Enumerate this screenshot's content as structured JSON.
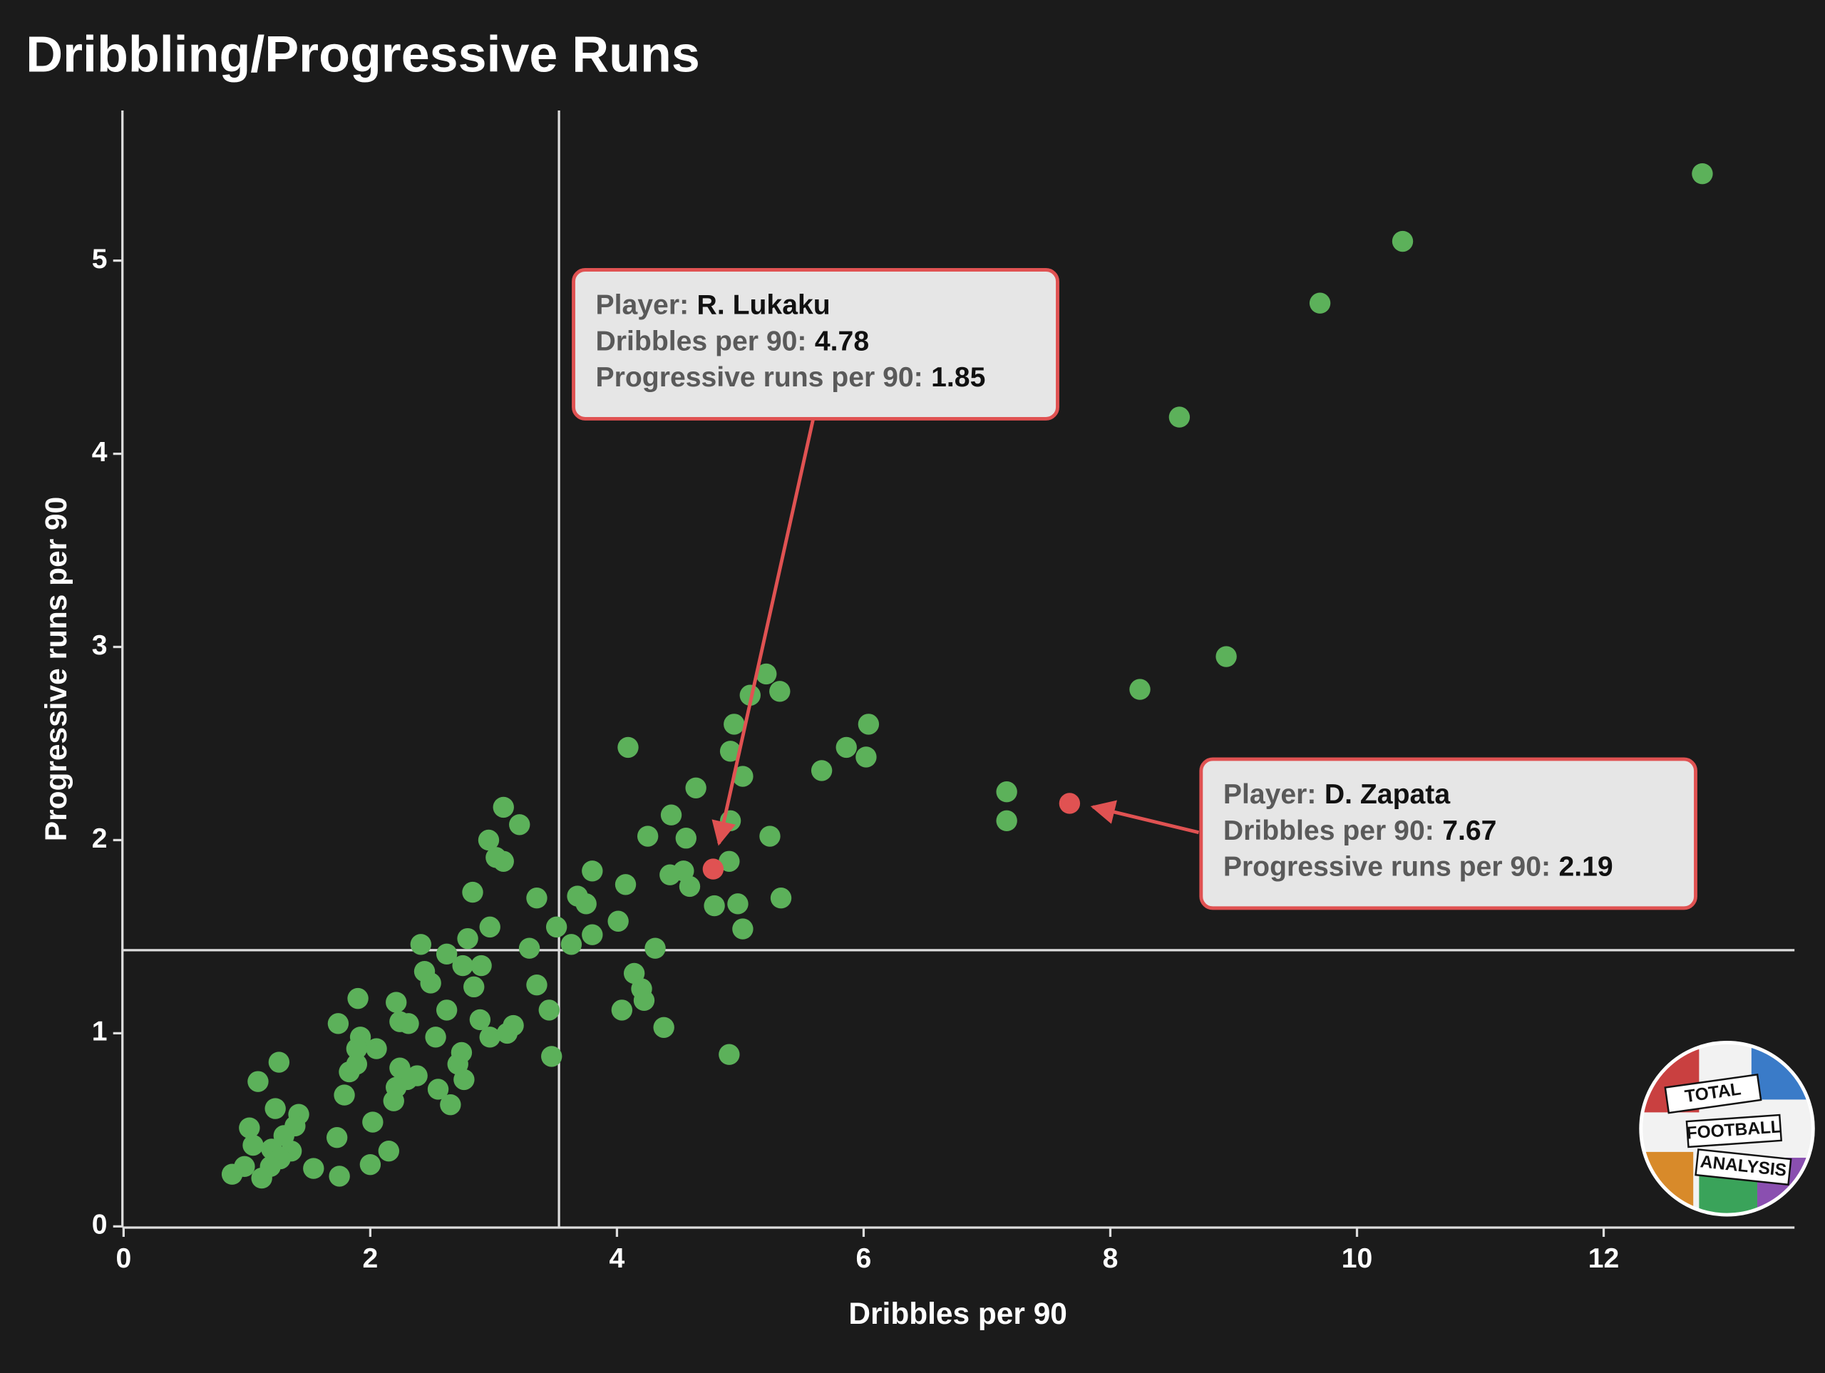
{
  "chart_data": {
    "type": "scatter",
    "title": "Dribbling/Progressive Runs",
    "x_label": "Dribbles per 90",
    "y_label": "Progressive runs per 90",
    "xlim": [
      0,
      13.55
    ],
    "ylim": [
      0,
      5.78
    ],
    "xticks": [
      0,
      2,
      4,
      6,
      8,
      10,
      12
    ],
    "yticks": [
      0,
      1,
      2,
      3,
      4,
      5
    ],
    "reference_lines": {
      "x": 3.53,
      "y": 1.43
    },
    "color": "#5cb15a",
    "highlight_color": "#e05252",
    "x": [
      12.8,
      10.37,
      9.7,
      8.56,
      8.94,
      8.24,
      7.16,
      7.16,
      6.04,
      6.02,
      5.86,
      5.66,
      5.21,
      5.08,
      5.32,
      4.95,
      4.92,
      5.02,
      4.64,
      4.92,
      5.24,
      5.33,
      4.91,
      4.98,
      4.79,
      5.02,
      4.59,
      4.56,
      4.44,
      4.25,
      4.09,
      4.43,
      4.54,
      4.07,
      3.8,
      3.68,
      3.75,
      3.8,
      4.01,
      4.31,
      3.63,
      3.51,
      3.35,
      3.29,
      4.14,
      4.2,
      4.22,
      4.04,
      4.38,
      4.91,
      3.47,
      3.45,
      3.35,
      3.21,
      3.08,
      2.96,
      3.02,
      3.08,
      2.83,
      2.97,
      2.79,
      2.41,
      2.62,
      2.75,
      2.9,
      2.44,
      2.49,
      2.84,
      2.62,
      2.89,
      3.16,
      3.11,
      2.97,
      2.53,
      2.31,
      2.24,
      2.21,
      1.9,
      1.74,
      1.92,
      2.05,
      1.89,
      1.89,
      1.83,
      2.24,
      2.3,
      2.21,
      2.38,
      2.74,
      2.71,
      2.76,
      2.55,
      2.65,
      1.79,
      2.19,
      2.02,
      1.26,
      1.09,
      1.23,
      1.42,
      1.39,
      1.02,
      1.3,
      1.05,
      1.2,
      1.36,
      1.27,
      0.98,
      1.19,
      1.12,
      0.88,
      1.54,
      1.75,
      2.0,
      2.15,
      1.73
    ],
    "values": [
      5.45,
      5.1,
      4.78,
      4.19,
      2.95,
      2.78,
      2.25,
      2.1,
      2.6,
      2.43,
      2.48,
      2.36,
      2.86,
      2.75,
      2.77,
      2.6,
      2.46,
      2.33,
      2.27,
      2.1,
      2.02,
      1.7,
      1.89,
      1.67,
      1.66,
      1.54,
      1.76,
      2.01,
      2.13,
      2.02,
      2.48,
      1.82,
      1.84,
      1.77,
      1.84,
      1.71,
      1.67,
      1.51,
      1.58,
      1.44,
      1.46,
      1.55,
      1.7,
      1.44,
      1.31,
      1.23,
      1.17,
      1.12,
      1.03,
      0.89,
      0.88,
      1.12,
      1.25,
      2.08,
      2.17,
      2.0,
      1.91,
      1.89,
      1.73,
      1.55,
      1.49,
      1.46,
      1.41,
      1.35,
      1.35,
      1.32,
      1.26,
      1.24,
      1.12,
      1.07,
      1.04,
      1.0,
      0.98,
      0.98,
      1.05,
      1.06,
      1.16,
      1.18,
      1.05,
      0.98,
      0.92,
      0.92,
      0.84,
      0.8,
      0.82,
      0.76,
      0.72,
      0.78,
      0.9,
      0.84,
      0.76,
      0.71,
      0.63,
      0.68,
      0.65,
      0.54,
      0.85,
      0.75,
      0.61,
      0.58,
      0.52,
      0.51,
      0.47,
      0.42,
      0.4,
      0.39,
      0.35,
      0.31,
      0.31,
      0.25,
      0.27,
      0.3,
      0.26,
      0.32,
      0.39,
      0.46
    ],
    "tooltip_labels": [
      "Player:",
      "Dribbles per 90:",
      "Progressive runs per 90:"
    ],
    "highlights": [
      {
        "player": "R. Lukaku",
        "x": 4.78,
        "y": 1.85
      },
      {
        "player": "D. Zapata",
        "x": 7.67,
        "y": 2.19
      }
    ],
    "logo": [
      "TOTAL",
      "FOOTBALL",
      "ANALYSIS"
    ]
  }
}
